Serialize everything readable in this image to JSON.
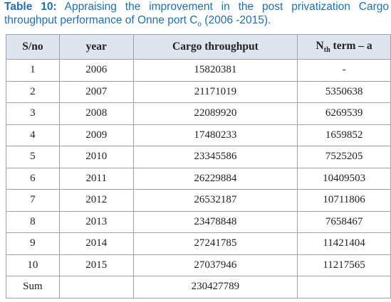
{
  "caption": {
    "label": "Table 10:",
    "text": "Appraising the improvement in the post privatization Cargo throughput performance of Onne port C",
    "subscript": "o",
    "tail": "(2006 -2015)."
  },
  "table": {
    "header": {
      "sno": "S/no",
      "year": "year",
      "cargo": "Cargo throughput",
      "nth": {
        "main": "N",
        "sub": "th",
        "rest": "term – a"
      }
    },
    "rows": [
      [
        "1",
        "2006",
        "15820381",
        "-"
      ],
      [
        "2",
        "2007",
        "21171019",
        "5350638"
      ],
      [
        "3",
        "2008",
        "22089920",
        "6269539"
      ],
      [
        "4",
        "2009",
        "17480233",
        "1659852"
      ],
      [
        "5",
        "2010",
        "23345586",
        "7525205"
      ],
      [
        "6",
        "2011",
        "26229884",
        "10409503"
      ],
      [
        "7",
        "2012",
        "26532187",
        "10711806"
      ],
      [
        "8",
        "2013",
        "23478848",
        "7658467"
      ],
      [
        "9",
        "2014",
        "27241785",
        "11421404"
      ],
      [
        "10",
        "2015",
        "27037946",
        "11217565"
      ],
      [
        "Sum",
        "",
        "230427789",
        ""
      ]
    ]
  }
}
